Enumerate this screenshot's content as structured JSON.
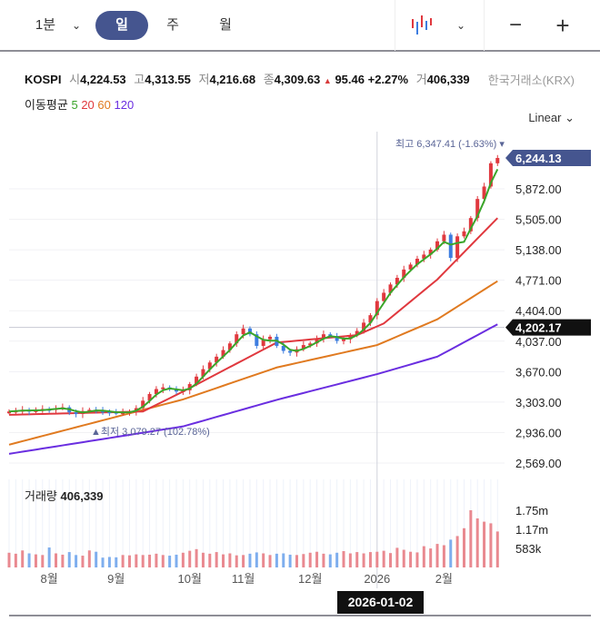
{
  "toolbar": {
    "interval": "1분",
    "tabs": [
      "일",
      "주",
      "월"
    ],
    "active_tab": "일",
    "chart_type_icon": "candlestick-icon",
    "zoom_out": "−",
    "zoom_in": "+"
  },
  "info": {
    "name": "KOSPI",
    "open_label": "시",
    "open": "4,224.53",
    "high_label": "고",
    "high": "4,313.55",
    "low_label": "저",
    "low": "4,216.68",
    "close_label": "종",
    "close": "4,309.63",
    "change_arrow": "▲",
    "change": "95.46",
    "change_pct": "+2.27%",
    "volume_label": "거",
    "volume": "406,339",
    "exchange": "한국거래소(KRX)"
  },
  "ma": {
    "label": "이동평균",
    "periods": [
      "5",
      "20",
      "60",
      "120"
    ],
    "colors": [
      "#3aa52a",
      "#e0383e",
      "#e07a20",
      "#6a2ee0"
    ]
  },
  "scale": "Linear",
  "chart_data": {
    "type": "candlestick",
    "ylim": [
      2400,
      6500
    ],
    "y_ticks": [
      "5,872.00",
      "5,505.00",
      "5,138.00",
      "4,771.00",
      "4,404.00",
      "4,037.00",
      "3,670.00",
      "3,303.00",
      "2,936.00",
      "2,569.00"
    ],
    "y_tick_values": [
      5872,
      5505,
      5138,
      4771,
      4404,
      4037,
      3670,
      3303,
      2936,
      2569
    ],
    "x_ticks": [
      "8월",
      "9월",
      "10월",
      "11월",
      "12월",
      "2026",
      "2월"
    ],
    "x_tick_index": [
      6,
      16,
      27,
      35,
      45,
      55,
      65
    ],
    "current_price": "6,244.13",
    "crosshair_price": "4,202.17",
    "crosshair_date": "2026-01-02",
    "crosshair_index": 55,
    "high_annotation": "최고 6,347.41 (-1.63%)",
    "low_annotation": "최저 3,079.27 (102.78%)",
    "closes": [
      3190,
      3200,
      3210,
      3195,
      3205,
      3220,
      3215,
      3230,
      3240,
      3180,
      3160,
      3195,
      3210,
      3200,
      3190,
      3185,
      3170,
      3180,
      3190,
      3230,
      3320,
      3400,
      3460,
      3480,
      3460,
      3430,
      3445,
      3520,
      3610,
      3700,
      3780,
      3850,
      3930,
      4010,
      4120,
      4190,
      4120,
      3980,
      4060,
      4090,
      3980,
      3920,
      3900,
      3940,
      3990,
      4010,
      4070,
      4120,
      4100,
      4040,
      4060,
      4110,
      4160,
      4260,
      4350,
      4520,
      4620,
      4720,
      4800,
      4900,
      4960,
      5030,
      5080,
      5140,
      5240,
      5320,
      5040,
      5300,
      5360,
      5520,
      5750,
      5900,
      6180,
      6244
    ],
    "ma20": [
      [
        0,
        3150
      ],
      [
        20,
        3190
      ],
      [
        26,
        3430
      ],
      [
        40,
        4020
      ],
      [
        52,
        4110
      ],
      [
        56,
        4250
      ],
      [
        64,
        4780
      ],
      [
        73,
        5520
      ]
    ],
    "ma60": [
      [
        0,
        2790
      ],
      [
        26,
        3335
      ],
      [
        40,
        3720
      ],
      [
        55,
        3990
      ],
      [
        64,
        4300
      ],
      [
        73,
        4760
      ]
    ],
    "ma120": [
      [
        0,
        2680
      ],
      [
        26,
        3010
      ],
      [
        40,
        3330
      ],
      [
        55,
        3640
      ],
      [
        64,
        3850
      ],
      [
        73,
        4240
      ]
    ],
    "volume_label": "거래량",
    "volume_value": "406,339",
    "volume_ticks": [
      "1.75m",
      "1.17m",
      "583k"
    ],
    "volume_tick_values": [
      1750,
      1170,
      583
    ],
    "volumes_k": [
      450,
      420,
      520,
      430,
      400,
      380,
      610,
      430,
      390,
      470,
      380,
      360,
      520,
      480,
      300,
      320,
      310,
      380,
      370,
      400,
      380,
      390,
      420,
      380,
      360,
      390,
      450,
      510,
      560,
      450,
      420,
      470,
      400,
      430,
      370,
      380,
      420,
      460,
      430,
      380,
      420,
      430,
      390,
      380,
      410,
      450,
      480,
      420,
      400,
      450,
      500,
      430,
      470,
      430,
      470,
      480,
      510,
      440,
      600,
      540,
      480,
      460,
      650,
      580,
      720,
      680,
      850,
      960,
      1200,
      1750,
      1500,
      1400,
      1350,
      1100
    ],
    "colors": {
      "up": "#e0383e",
      "down": "#3d7de0",
      "vol_up": "#e98990",
      "vol_down": "#7eaeee",
      "label_bg": "#45558f"
    }
  }
}
